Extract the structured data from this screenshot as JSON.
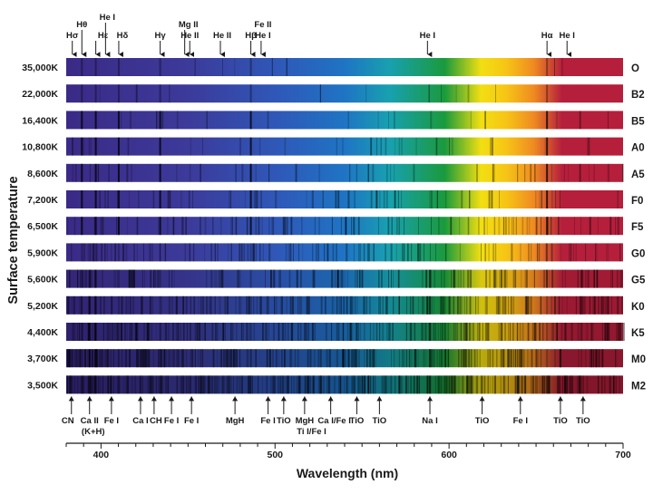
{
  "y_axis_label": "Surface temperature",
  "x_axis_label": "Wavelength (nm)",
  "x_axis": {
    "min": 380,
    "max": 700,
    "tick_labels": [
      400,
      500,
      600,
      700
    ]
  },
  "top_lines": [
    {
      "label": "Hσ",
      "wl": 383.5
    },
    {
      "label": "Hθ",
      "wl": 389
    },
    {
      "label": "Hε",
      "wl": 397
    },
    {
      "label": "He I",
      "wl": 402.6
    },
    {
      "label": "Hδ",
      "wl": 410.2
    },
    {
      "label": "Hγ",
      "wl": 434
    },
    {
      "label": "Mg II",
      "wl": 448.1
    },
    {
      "label": "He II",
      "wl": 451
    },
    {
      "label": "He II",
      "wl": 468.6
    },
    {
      "label": "Hβ",
      "wl": 486.1
    },
    {
      "label": "Fe II",
      "wl": 492
    },
    {
      "label": "He I",
      "wl": 492
    },
    {
      "label": "He I",
      "wl": 587.6
    },
    {
      "label": "Hα",
      "wl": 656.3
    },
    {
      "label": "He I",
      "wl": 667.8
    }
  ],
  "bottom_lines": [
    {
      "label": "CN",
      "wl": 383
    },
    {
      "label": "Ca II",
      "wl": 393.4
    },
    {
      "label": "(K+H)",
      "wl": 395.5
    },
    {
      "label": "Fe I",
      "wl": 406
    },
    {
      "label": "Ca I",
      "wl": 422.7
    },
    {
      "label": "CH",
      "wl": 430.5
    },
    {
      "label": "Fe I",
      "wl": 440.5
    },
    {
      "label": "Fe I",
      "wl": 452
    },
    {
      "label": "MgH",
      "wl": 477
    },
    {
      "label": "Fe I",
      "wl": 496
    },
    {
      "label": "TiO",
      "wl": 505
    },
    {
      "label": "MgH",
      "wl": 517
    },
    {
      "label": "Ti I/Fe I",
      "wl": 521
    },
    {
      "label": "Ca I/Fe I",
      "wl": 532
    },
    {
      "label": "TiO",
      "wl": 547
    },
    {
      "label": "TiO",
      "wl": 560
    },
    {
      "label": "Na I",
      "wl": 589
    },
    {
      "label": "TiO",
      "wl": 619
    },
    {
      "label": "Fe I",
      "wl": 641
    },
    {
      "label": "TiO",
      "wl": 664
    },
    {
      "label": "TiO",
      "wl": 677
    }
  ],
  "spectra": [
    {
      "temp": "35,000K",
      "class": "O"
    },
    {
      "temp": "22,000K",
      "class": "B2"
    },
    {
      "temp": "16,400K",
      "class": "B5"
    },
    {
      "temp": "10,800K",
      "class": "A0"
    },
    {
      "temp": "8,600K",
      "class": "A5"
    },
    {
      "temp": "7,200K",
      "class": "F0"
    },
    {
      "temp": "6,500K",
      "class": "F5"
    },
    {
      "temp": "5,900K",
      "class": "G0"
    },
    {
      "temp": "5,600K",
      "class": "G5"
    },
    {
      "temp": "5,200K",
      "class": "K0"
    },
    {
      "temp": "4,400K",
      "class": "K5"
    },
    {
      "temp": "3,700K",
      "class": "M0"
    },
    {
      "temp": "3,500K",
      "class": "M2"
    }
  ],
  "colors": {
    "violet": "#3b2a86",
    "blue": "#1f74c4",
    "green": "#1a9a3c",
    "yellow": "#f2df12",
    "red": "#b51f3c"
  }
}
